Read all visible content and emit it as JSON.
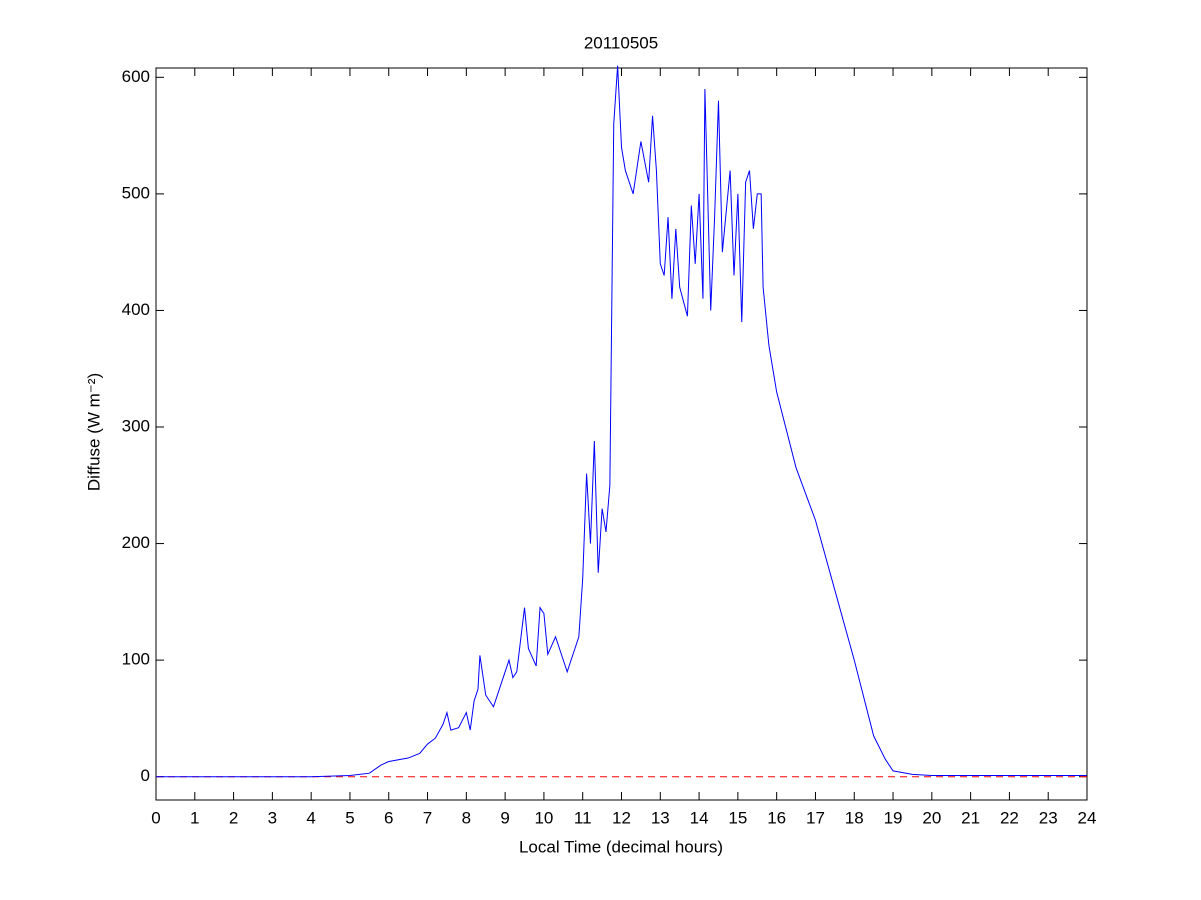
{
  "chart_data": {
    "type": "line",
    "title": "20110505",
    "x_label": "Local Time (decimal hours)",
    "y_label": "Diffuse (W m⁻²)",
    "x": [
      0,
      1,
      2,
      3,
      4,
      5,
      5.5,
      5.8,
      6,
      6.5,
      6.8,
      7,
      7.2,
      7.4,
      7.5,
      7.6,
      7.8,
      8,
      8.1,
      8.2,
      8.3,
      8.35,
      8.5,
      8.7,
      8.9,
      9.1,
      9.2,
      9.3,
      9.5,
      9.6,
      9.8,
      9.9,
      10,
      10.1,
      10.3,
      10.5,
      10.6,
      10.8,
      10.9,
      11,
      11.1,
      11.2,
      11.3,
      11.4,
      11.5,
      11.6,
      11.7,
      11.8,
      11.9,
      12,
      12.1,
      12.3,
      12.5,
      12.7,
      12.8,
      12.9,
      13,
      13.1,
      13.2,
      13.3,
      13.4,
      13.5,
      13.7,
      13.8,
      13.9,
      14,
      14.1,
      14.15,
      14.3,
      14.4,
      14.5,
      14.6,
      14.8,
      14.9,
      15,
      15.1,
      15.2,
      15.3,
      15.4,
      15.5,
      15.6,
      15.65,
      15.8,
      16,
      16.5,
      17,
      17.5,
      18,
      18.5,
      18.8,
      19,
      19.5,
      20,
      21,
      22,
      23,
      24
    ],
    "series": [
      {
        "color": "#0000ff",
        "values": [
          0,
          0,
          0,
          0,
          0,
          1,
          3,
          10,
          13,
          16,
          20,
          28,
          33,
          45,
          55,
          40,
          42,
          55,
          40,
          65,
          75,
          104,
          70,
          60,
          80,
          100,
          85,
          90,
          145,
          110,
          95,
          145,
          140,
          105,
          120,
          100,
          90,
          110,
          120,
          170,
          260,
          200,
          288,
          175,
          230,
          210,
          250,
          560,
          610,
          540,
          520,
          500,
          545,
          510,
          567,
          520,
          440,
          430,
          480,
          410,
          470,
          420,
          395,
          490,
          440,
          500,
          410,
          590,
          400,
          480,
          580,
          450,
          520,
          430,
          500,
          390,
          510,
          520,
          470,
          500,
          500,
          420,
          370,
          330,
          265,
          220,
          160,
          100,
          35,
          15,
          5,
          2,
          1,
          1,
          1,
          1,
          1
        ]
      }
    ],
    "reference_line": {
      "value": 0,
      "color": "#ff0000",
      "style": "dashed"
    },
    "xlim": [
      0,
      24
    ],
    "xticks": [
      0,
      1,
      2,
      3,
      4,
      5,
      6,
      7,
      8,
      9,
      10,
      11,
      12,
      13,
      14,
      15,
      16,
      17,
      18,
      19,
      20,
      21,
      22,
      23,
      24
    ],
    "ylim": [
      -20,
      608
    ],
    "yticks": [
      0,
      100,
      200,
      300,
      400,
      500,
      600
    ],
    "grid": false
  }
}
